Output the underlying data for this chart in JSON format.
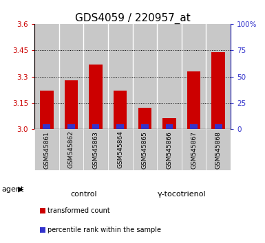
{
  "title": "GDS4059 / 220957_at",
  "samples": [
    "GSM545861",
    "GSM545862",
    "GSM545863",
    "GSM545864",
    "GSM545865",
    "GSM545866",
    "GSM545867",
    "GSM545868"
  ],
  "red_values": [
    3.22,
    3.28,
    3.37,
    3.22,
    3.12,
    3.06,
    3.33,
    3.44
  ],
  "blue_values": [
    0.025,
    0.025,
    0.025,
    0.025,
    0.025,
    0.025,
    0.025,
    0.025
  ],
  "baseline": 3.0,
  "ylim": [
    3.0,
    3.6
  ],
  "yticks_left": [
    3.0,
    3.15,
    3.3,
    3.45,
    3.6
  ],
  "yticks_right": [
    0,
    25,
    50,
    75,
    100
  ],
  "red_color": "#cc0000",
  "blue_color": "#3333cc",
  "groups": [
    {
      "label": "control",
      "indices": [
        0,
        1,
        2,
        3
      ],
      "color": "#ccffcc"
    },
    {
      "label": "γ-tocotrienol",
      "indices": [
        4,
        5,
        6,
        7
      ],
      "color": "#55ee55"
    }
  ],
  "agent_label": "agent",
  "legend_items": [
    {
      "color": "#cc0000",
      "label": "transformed count"
    },
    {
      "color": "#3333cc",
      "label": "percentile rank within the sample"
    }
  ],
  "bar_bg_color": "#c8c8c8",
  "bar_width": 0.55,
  "title_fontsize": 11,
  "tick_fontsize": 7.5,
  "sample_fontsize": 6.5,
  "group_fontsize": 8,
  "legend_fontsize": 7
}
